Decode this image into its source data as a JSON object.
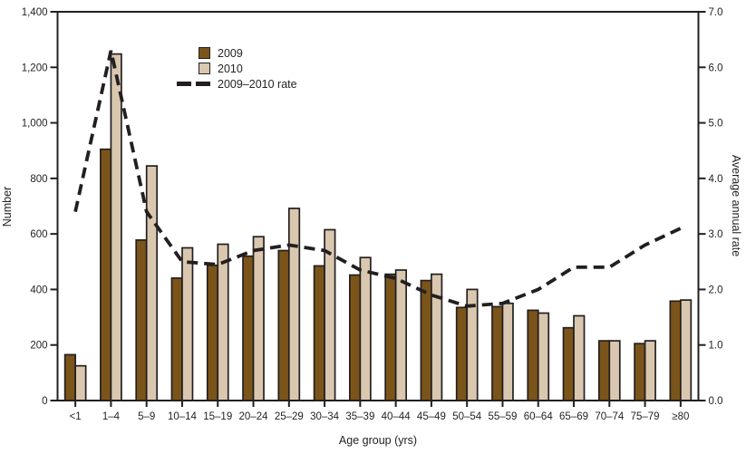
{
  "chart_data": {
    "type": "bar",
    "categories": [
      "<1",
      "1–4",
      "5–9",
      "10–14",
      "15–19",
      "20–24",
      "25–29",
      "30–34",
      "35–39",
      "40–44",
      "45–49",
      "50–54",
      "55–59",
      "60–64",
      "65–69",
      "70–74",
      "75–79",
      "≥80"
    ],
    "series": [
      {
        "name": "2009",
        "type": "bar",
        "color": "#7B541A",
        "values": [
          165,
          905,
          578,
          441,
          487,
          520,
          540,
          485,
          452,
          455,
          432,
          335,
          338,
          325,
          262,
          215,
          205,
          358
        ]
      },
      {
        "name": "2010",
        "type": "bar",
        "color": "#D9C8AF",
        "values": [
          125,
          1248,
          845,
          550,
          563,
          590,
          692,
          615,
          515,
          470,
          455,
          400,
          350,
          315,
          305,
          215,
          215,
          362
        ]
      },
      {
        "name": "2009–2010 rate",
        "type": "line",
        "axis": "right",
        "color": "#231F20",
        "dashed": true,
        "values": [
          3.4,
          6.3,
          3.4,
          2.5,
          2.45,
          2.7,
          2.8,
          2.7,
          2.35,
          2.2,
          1.9,
          1.7,
          1.75,
          2.0,
          2.4,
          2.4,
          2.8,
          3.1
        ]
      }
    ],
    "left_axis": {
      "label": "Number",
      "min": 0,
      "max": 1400,
      "ticks": [
        "0",
        "200",
        "400",
        "600",
        "800",
        "1,000",
        "1,200",
        "1,400"
      ]
    },
    "right_axis": {
      "label": "Average annual rate",
      "min": 0,
      "max": 7,
      "ticks": [
        "0.0",
        "1.0",
        "2.0",
        "3.0",
        "4.0",
        "5.0",
        "6.0",
        "7.0"
      ]
    },
    "x_axis": {
      "label": "Age group (yrs)"
    },
    "legend_position": "upper-left-inside",
    "grid": false,
    "outline_color": "#231F20",
    "background_color": "#FFFFFF"
  }
}
